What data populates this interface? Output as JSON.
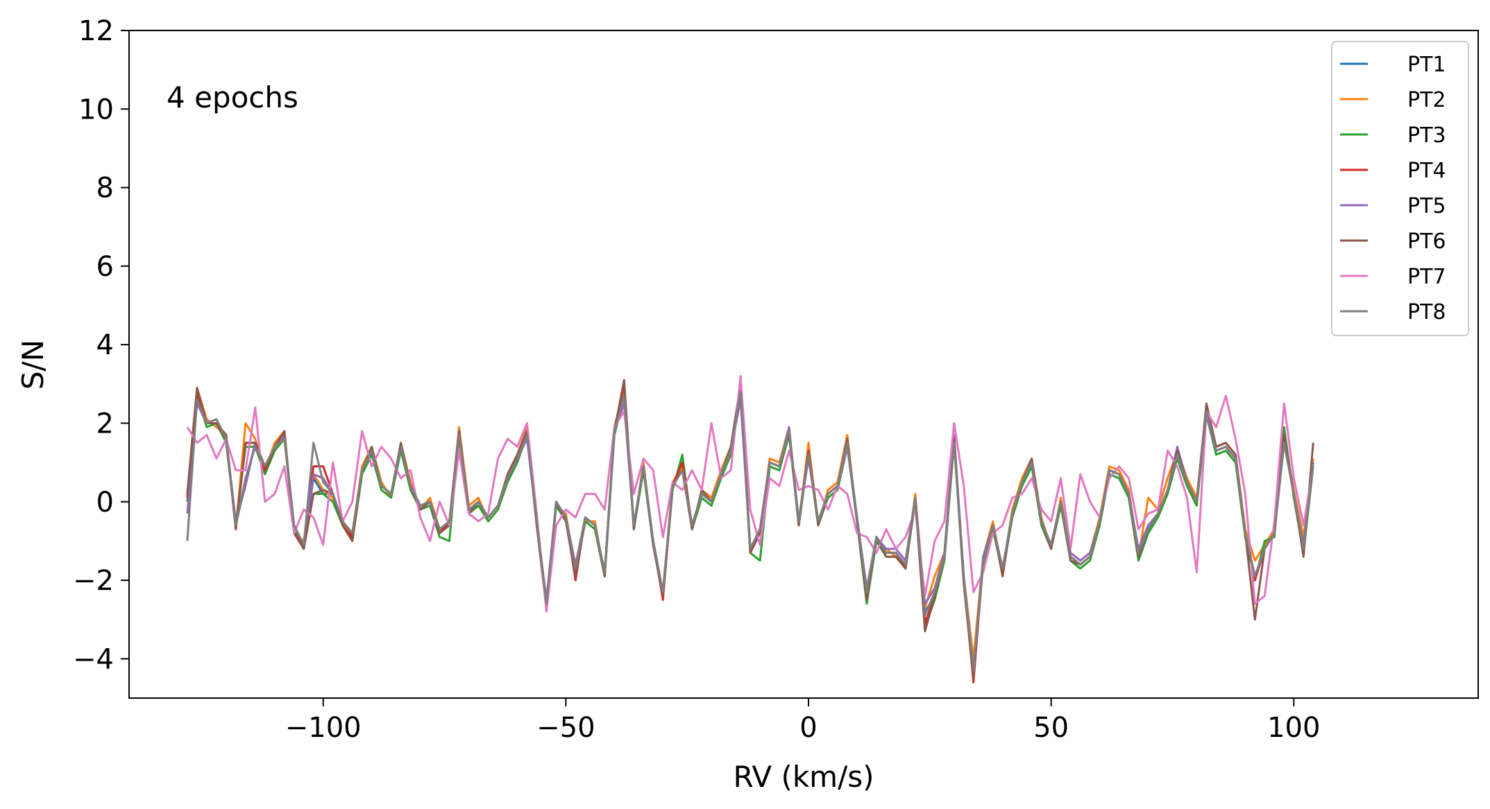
{
  "chart_data": {
    "type": "line",
    "title": "",
    "annotation": "4 epochs",
    "xlabel": "RV (km/s)",
    "ylabel": "S/N",
    "xlim": [
      -140,
      138
    ],
    "ylim": [
      -5,
      12
    ],
    "xticks": [
      -100,
      -50,
      0,
      50,
      100
    ],
    "xtick_labels": [
      "−100",
      "−50",
      "0",
      "50",
      "100"
    ],
    "yticks": [
      -4,
      -2,
      0,
      2,
      4,
      6,
      8,
      10,
      12
    ],
    "ytick_labels": [
      "−4",
      "−2",
      "0",
      "2",
      "4",
      "6",
      "8",
      "10",
      "12"
    ],
    "grid": false,
    "legend_position": "top-right",
    "x_start": -128,
    "x_step": 2,
    "series": [
      {
        "name": "PT1",
        "color": "#1f77b4",
        "values": [
          0.1,
          2.8,
          2.0,
          2.0,
          1.6,
          -0.6,
          0.5,
          1.5,
          0.9,
          1.4,
          1.7,
          -0.7,
          -1.1,
          0.6,
          0.2,
          0.2,
          -0.5,
          -0.9,
          0.8,
          1.3,
          0.4,
          0.2,
          1.4,
          0.4,
          -0.1,
          0.0,
          -0.8,
          -0.5,
          1.8,
          -0.2,
          0.0,
          -0.4,
          -0.1,
          0.6,
          1.1,
          1.8,
          -0.5,
          -2.6,
          0.0,
          -0.4,
          -1.7,
          -0.4,
          -0.6,
          -1.8,
          1.8,
          2.8,
          -0.6,
          0.9,
          -1.0,
          -2.3,
          0.4,
          0.8,
          -0.6,
          0.2,
          0.0,
          0.7,
          1.3,
          2.9,
          -1.2,
          -0.7,
          1.0,
          0.9,
          1.8,
          -0.5,
          1.3,
          -0.5,
          0.2,
          0.4,
          1.5,
          -0.4,
          -2.3,
          -0.9,
          -1.3,
          -1.3,
          -1.6,
          0.1,
          -2.8,
          -2.4,
          -1.4,
          1.6,
          -2.0,
          -4.2,
          -1.5,
          -0.6,
          -1.7,
          -0.3,
          0.5,
          1.0,
          -0.5,
          -1.1,
          0.0,
          -1.4,
          -1.6,
          -1.4,
          -0.5,
          0.8,
          0.7,
          0.2,
          -1.3,
          -0.7,
          -0.3,
          0.3,
          1.2,
          0.5,
          0.0,
          2.3,
          1.3,
          1.4,
          1.1,
          -0.8,
          -1.9,
          -1.2,
          -0.8,
          1.5,
          0.2,
          -1.2,
          1.0
        ]
      },
      {
        "name": "PT2",
        "color": "#ff7f0e",
        "values": [
          0.2,
          2.9,
          2.1,
          1.9,
          1.7,
          -0.7,
          2.0,
          1.6,
          0.8,
          1.5,
          1.8,
          -0.8,
          -1.0,
          0.7,
          0.3,
          0.1,
          -0.6,
          -0.8,
          0.9,
          1.4,
          0.5,
          0.1,
          1.5,
          0.5,
          -0.2,
          0.1,
          -0.7,
          -0.6,
          1.9,
          -0.1,
          0.1,
          -0.5,
          -0.2,
          0.7,
          1.2,
          1.9,
          -0.6,
          -2.7,
          -0.1,
          -0.3,
          -1.8,
          -0.5,
          -0.5,
          -1.9,
          1.9,
          2.9,
          -0.7,
          1.0,
          -1.1,
          -2.4,
          0.5,
          0.9,
          -0.7,
          0.3,
          0.1,
          0.8,
          1.4,
          2.9,
          -1.3,
          -0.8,
          1.1,
          1.0,
          1.9,
          -0.6,
          1.5,
          -0.6,
          0.3,
          0.5,
          1.7,
          -0.5,
          -2.4,
          -1.0,
          -1.2,
          -1.4,
          -1.7,
          0.2,
          -2.7,
          -1.9,
          -1.3,
          1.6,
          -1.9,
          -4.0,
          -1.4,
          -0.5,
          -1.8,
          -0.2,
          0.6,
          1.1,
          -0.4,
          -1.2,
          0.1,
          -1.3,
          -1.5,
          -1.3,
          -0.4,
          0.9,
          0.8,
          0.3,
          -1.4,
          0.1,
          -0.2,
          0.6,
          1.3,
          0.6,
          0.1,
          2.4,
          1.4,
          1.5,
          1.2,
          -0.7,
          -1.5,
          -1.1,
          -0.7,
          1.6,
          0.3,
          -0.9,
          1.1
        ]
      },
      {
        "name": "PT3",
        "color": "#2ca02c",
        "values": [
          0.0,
          2.7,
          1.9,
          2.0,
          1.5,
          -0.6,
          1.4,
          1.4,
          0.7,
          1.3,
          1.6,
          -0.7,
          -1.2,
          0.2,
          0.2,
          0.0,
          -0.6,
          -1.0,
          0.7,
          1.2,
          0.3,
          0.1,
          1.3,
          0.3,
          -0.2,
          -0.1,
          -0.9,
          -1.0,
          1.7,
          -0.3,
          -0.1,
          -0.5,
          -0.2,
          0.5,
          1.0,
          1.7,
          -0.6,
          -2.7,
          -0.1,
          -0.5,
          -1.8,
          -0.5,
          -0.7,
          -1.9,
          1.7,
          2.7,
          -0.7,
          0.8,
          -1.1,
          -2.4,
          0.3,
          1.2,
          -0.7,
          0.1,
          -0.1,
          0.6,
          1.2,
          2.8,
          -1.3,
          -1.5,
          0.9,
          0.8,
          1.7,
          -0.6,
          1.2,
          -0.6,
          0.1,
          0.3,
          1.4,
          -0.5,
          -2.6,
          -1.0,
          -1.4,
          -1.4,
          -1.7,
          0.0,
          -3.2,
          -2.5,
          -1.5,
          1.5,
          -2.1,
          -4.3,
          -1.6,
          -0.7,
          -1.8,
          -0.4,
          0.4,
          0.9,
          -0.6,
          -1.2,
          -0.1,
          -1.5,
          -1.7,
          -1.5,
          -0.6,
          0.7,
          0.6,
          0.1,
          -1.5,
          -0.8,
          -0.4,
          0.2,
          1.1,
          0.4,
          -0.1,
          2.2,
          1.2,
          1.3,
          1.0,
          -0.9,
          -2.0,
          -1.0,
          -0.9,
          1.9,
          0.1,
          -1.3,
          0.9
        ]
      },
      {
        "name": "PT4",
        "color": "#d62728",
        "values": [
          0.1,
          2.8,
          2.0,
          2.0,
          1.6,
          -0.7,
          1.5,
          1.5,
          0.8,
          1.4,
          1.7,
          -0.8,
          -1.1,
          0.9,
          0.9,
          0.2,
          -0.6,
          -0.9,
          0.8,
          1.3,
          0.4,
          0.2,
          1.4,
          0.4,
          -0.1,
          0.0,
          -0.8,
          -0.5,
          1.8,
          -0.2,
          0.0,
          -0.4,
          -0.1,
          0.6,
          1.1,
          1.8,
          -0.5,
          -2.7,
          0.0,
          -0.4,
          -2.0,
          -0.4,
          -0.6,
          -1.8,
          1.8,
          3.0,
          -0.6,
          0.9,
          -1.0,
          -2.5,
          0.4,
          1.0,
          -0.6,
          0.2,
          0.0,
          0.7,
          1.3,
          2.9,
          -1.2,
          -0.7,
          1.0,
          0.9,
          1.8,
          -0.5,
          1.3,
          -0.5,
          0.2,
          0.4,
          1.5,
          -0.4,
          -2.4,
          -0.9,
          -1.3,
          -1.3,
          -1.7,
          0.1,
          -3.1,
          -2.4,
          -1.4,
          1.6,
          -2.0,
          -4.6,
          -1.5,
          -0.6,
          -1.8,
          -0.3,
          0.5,
          1.0,
          -0.5,
          -1.1,
          0.0,
          -1.4,
          -1.6,
          -1.4,
          -0.5,
          0.8,
          0.7,
          0.2,
          -1.3,
          -0.7,
          -0.3,
          0.3,
          1.2,
          0.5,
          0.0,
          2.4,
          1.3,
          1.4,
          1.1,
          -0.8,
          -2.0,
          -1.2,
          -0.8,
          1.6,
          0.2,
          -1.2,
          1.0
        ]
      },
      {
        "name": "PT5",
        "color": "#9467bd",
        "values": [
          -0.3,
          2.5,
          2.0,
          2.1,
          1.6,
          -0.5,
          0.4,
          1.5,
          0.9,
          1.4,
          1.7,
          -0.6,
          -1.1,
          0.7,
          0.6,
          0.2,
          -0.5,
          -0.8,
          0.8,
          1.3,
          0.4,
          0.2,
          1.4,
          0.4,
          -0.1,
          0.0,
          -0.7,
          -0.5,
          1.6,
          -0.2,
          0.0,
          -0.4,
          -0.1,
          0.6,
          1.1,
          1.6,
          -0.5,
          -2.5,
          0.0,
          -0.4,
          -1.6,
          -0.4,
          -0.6,
          -1.8,
          1.8,
          2.5,
          -0.6,
          0.9,
          -1.0,
          -2.3,
          0.4,
          0.8,
          -0.6,
          0.2,
          0.0,
          0.7,
          1.3,
          2.6,
          -1.2,
          -0.7,
          1.0,
          0.9,
          1.9,
          -0.5,
          1.1,
          -0.5,
          0.2,
          0.4,
          1.4,
          -0.4,
          -2.2,
          -0.9,
          -1.2,
          -1.2,
          -1.5,
          0.1,
          -2.6,
          -2.2,
          -1.3,
          1.7,
          -1.9,
          -4.4,
          -1.4,
          -0.6,
          -1.7,
          -0.3,
          0.5,
          1.0,
          -0.5,
          -1.1,
          0.0,
          -1.3,
          -1.5,
          -1.3,
          -0.5,
          0.8,
          0.7,
          0.2,
          -1.2,
          -0.6,
          -0.3,
          0.3,
          1.4,
          0.5,
          0.0,
          2.2,
          1.3,
          1.4,
          1.1,
          -0.8,
          -1.9,
          -1.2,
          -0.8,
          1.5,
          0.2,
          -1.1,
          1.0
        ]
      },
      {
        "name": "PT6",
        "color": "#8c564b",
        "values": [
          0.2,
          2.9,
          2.0,
          2.0,
          1.7,
          -0.7,
          1.5,
          1.5,
          0.9,
          1.4,
          1.8,
          -0.8,
          -1.2,
          0.2,
          0.3,
          0.2,
          -0.6,
          -1.0,
          0.8,
          1.4,
          0.4,
          0.2,
          1.5,
          0.4,
          -0.2,
          0.0,
          -0.8,
          -0.6,
          1.8,
          -0.3,
          0.0,
          -0.4,
          -0.1,
          0.7,
          1.2,
          1.8,
          -0.6,
          -2.7,
          0.0,
          -0.5,
          -1.9,
          -0.4,
          -0.6,
          -1.9,
          1.8,
          3.1,
          -0.7,
          0.9,
          -1.1,
          -2.4,
          0.4,
          0.8,
          -0.7,
          0.3,
          0.0,
          0.7,
          1.4,
          3.0,
          -1.3,
          -0.8,
          1.0,
          0.9,
          1.8,
          -0.6,
          1.3,
          -0.6,
          0.2,
          0.4,
          1.6,
          -0.5,
          -2.5,
          -0.9,
          -1.4,
          -1.4,
          -1.7,
          0.1,
          -3.3,
          -2.4,
          -1.4,
          1.6,
          -2.1,
          -4.5,
          -1.5,
          -0.6,
          -1.9,
          -0.3,
          0.5,
          1.1,
          -0.5,
          -1.2,
          0.0,
          -1.5,
          -1.6,
          -1.4,
          -0.5,
          0.8,
          0.7,
          0.2,
          -1.4,
          -0.7,
          -0.3,
          0.3,
          1.3,
          0.5,
          0.0,
          2.5,
          1.4,
          1.5,
          1.2,
          -0.8,
          -3.0,
          -1.2,
          -0.8,
          1.7,
          0.2,
          -1.4,
          1.5
        ]
      },
      {
        "name": "PT7",
        "color": "#e377c2",
        "values": [
          1.9,
          1.5,
          1.7,
          1.1,
          1.6,
          0.8,
          0.8,
          2.4,
          0.0,
          0.2,
          0.9,
          -0.8,
          -0.2,
          -0.4,
          -1.1,
          1.0,
          -0.5,
          0.0,
          1.8,
          0.9,
          1.4,
          1.1,
          0.6,
          0.8,
          -0.4,
          -1.0,
          0.0,
          -0.6,
          1.3,
          -0.3,
          -0.5,
          -0.3,
          1.1,
          1.6,
          1.4,
          2.0,
          -0.3,
          -2.8,
          -0.6,
          -0.2,
          -0.4,
          0.2,
          0.2,
          -0.2,
          1.9,
          2.3,
          0.2,
          1.1,
          0.8,
          -0.9,
          0.5,
          0.3,
          0.8,
          0.3,
          2.0,
          0.6,
          0.8,
          3.2,
          -0.2,
          -1.1,
          0.6,
          0.4,
          1.3,
          0.3,
          0.4,
          0.3,
          -0.2,
          0.4,
          0.2,
          -0.8,
          -0.9,
          -1.3,
          -0.7,
          -1.2,
          -0.9,
          -0.2,
          -2.4,
          -1.0,
          -0.5,
          2.0,
          0.4,
          -2.3,
          -1.8,
          -0.8,
          -0.6,
          0.1,
          0.2,
          0.6,
          -0.2,
          -0.5,
          0.6,
          -1.2,
          0.7,
          0.0,
          -0.4,
          0.6,
          0.9,
          0.6,
          -0.7,
          -0.3,
          -0.2,
          1.3,
          0.9,
          0.1,
          -1.8,
          2.3,
          1.9,
          2.7,
          1.6,
          0.2,
          -2.6,
          -2.4,
          -0.5,
          2.5,
          0.6,
          -0.6,
          0.9
        ]
      },
      {
        "name": "PT8",
        "color": "#7f7f7f",
        "values": [
          -1.0,
          2.6,
          2.0,
          2.1,
          1.6,
          -0.6,
          0.6,
          1.4,
          0.9,
          1.4,
          1.6,
          -0.6,
          -1.1,
          1.5,
          0.5,
          0.2,
          -0.5,
          -0.8,
          0.8,
          1.3,
          0.4,
          0.2,
          1.4,
          0.4,
          -0.1,
          0.0,
          -0.7,
          -0.5,
          1.7,
          -0.2,
          0.0,
          -0.4,
          -0.1,
          0.6,
          1.1,
          1.7,
          -0.5,
          -2.6,
          0.0,
          -0.4,
          -1.7,
          -0.4,
          -0.6,
          -1.8,
          1.8,
          2.7,
          -0.6,
          0.9,
          -1.0,
          -2.3,
          0.4,
          0.8,
          -0.6,
          0.2,
          0.0,
          0.7,
          1.3,
          2.8,
          -1.2,
          -0.7,
          1.0,
          0.9,
          1.8,
          -0.5,
          1.2,
          -0.5,
          0.2,
          0.4,
          1.5,
          -0.4,
          -2.3,
          -0.9,
          -1.3,
          -1.3,
          -1.6,
          0.1,
          -2.9,
          -2.3,
          -1.4,
          1.5,
          -2.0,
          -4.3,
          -1.5,
          -0.6,
          -1.7,
          -0.3,
          0.5,
          1.0,
          -0.5,
          -1.1,
          0.0,
          -1.4,
          -1.6,
          -1.4,
          -0.5,
          0.8,
          0.7,
          0.2,
          -1.3,
          -0.7,
          -0.3,
          0.3,
          1.2,
          0.5,
          0.0,
          2.3,
          1.3,
          1.4,
          1.1,
          -0.8,
          -1.9,
          -1.2,
          -0.8,
          1.5,
          0.2,
          -1.2,
          1.0
        ]
      }
    ]
  }
}
